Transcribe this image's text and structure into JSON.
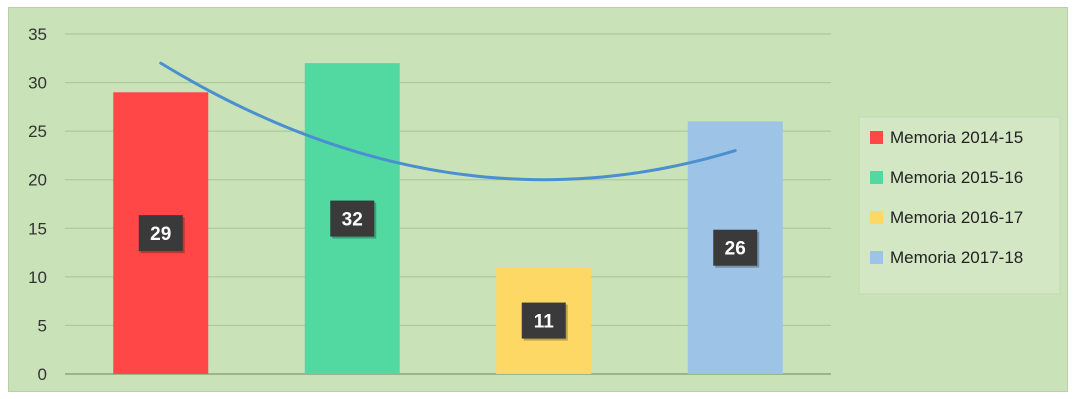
{
  "chart_data": {
    "type": "bar",
    "categories": [
      "Memoria 2014-15",
      "Memoria 2015-16",
      "Memoria 2016-17",
      "Memoria 2017-18"
    ],
    "values": [
      29,
      32,
      11,
      26
    ],
    "colors": [
      "#ff4747",
      "#52d9a2",
      "#fdd865",
      "#9dc3e6"
    ],
    "ylim": [
      0,
      35
    ],
    "yticks": [
      0,
      5,
      10,
      15,
      20,
      25,
      30,
      35
    ],
    "grid": true,
    "legend_position": "right",
    "trendline": {
      "type": "polynomial",
      "color": "#4a90d0"
    },
    "data_label_style": {
      "background": "#3a3a3a",
      "color": "#ffffff"
    }
  }
}
